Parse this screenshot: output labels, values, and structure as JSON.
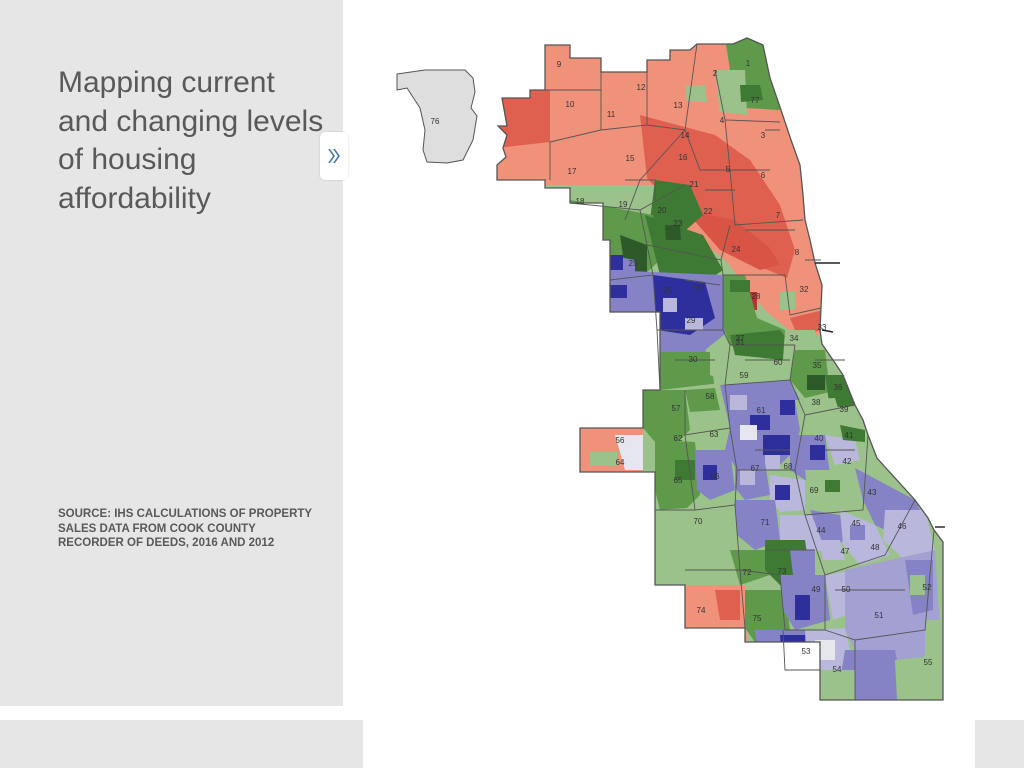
{
  "panel": {
    "title": "Mapping current and changing levels of housing affordability",
    "source": "SOURCE: IHS CALCULATIONS OF PROPERTY SALES DATA FROM COOK COUNTY RECORDER OF DEEDS, 2016 AND 2012"
  },
  "toggle": {
    "icon": "double-chevron-right-icon"
  },
  "map": {
    "colors": {
      "salmon": "#f0927a",
      "red": "#e06050",
      "dark_red": "#b83232",
      "light_green": "#9bc28a",
      "green": "#5e9a4a",
      "dark_green": "#3e7a34",
      "light_purple": "#b9b7dc",
      "purple": "#8583c6",
      "dark_blue": "#2e2e9c",
      "white_gray": "#e6e6ee",
      "gray": "#dedede",
      "boundary": "#555555"
    },
    "community_area_numbers": [
      "1",
      "2",
      "3",
      "4",
      "5",
      "6",
      "7",
      "8",
      "9",
      "10",
      "11",
      "12",
      "13",
      "14",
      "15",
      "16",
      "17",
      "18",
      "19",
      "20",
      "21",
      "22",
      "23",
      "24",
      "25",
      "26",
      "27",
      "28",
      "29",
      "30",
      "31",
      "32",
      "33",
      "34",
      "35",
      "36",
      "37",
      "38",
      "39",
      "40",
      "41",
      "42",
      "43",
      "44",
      "45",
      "46",
      "47",
      "48",
      "49",
      "50",
      "51",
      "52",
      "53",
      "54",
      "55",
      "56",
      "57",
      "58",
      "59",
      "60",
      "61",
      "62",
      "63",
      "64",
      "65",
      "66",
      "67",
      "68",
      "69",
      "70",
      "71",
      "72",
      "73",
      "74",
      "75",
      "76",
      "77"
    ]
  }
}
